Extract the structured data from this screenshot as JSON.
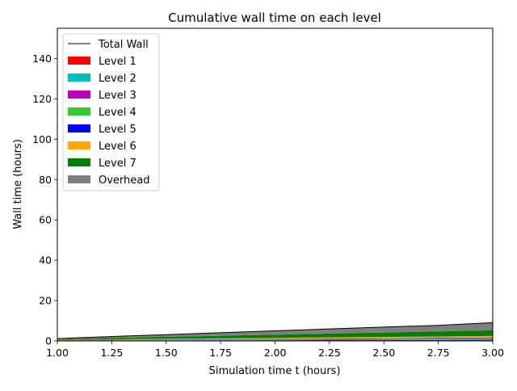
{
  "chart_data": {
    "type": "area",
    "title": "Cumulative wall time on each level",
    "xlabel": "Simulation time t (hours)",
    "ylabel": "Wall time (hours)",
    "xlim": [
      1.0,
      3.0
    ],
    "ylim": [
      0,
      155
    ],
    "xticks": [
      1.0,
      1.25,
      1.5,
      1.75,
      2.0,
      2.25,
      2.5,
      2.75,
      3.0
    ],
    "xtick_labels": [
      "1.00",
      "1.25",
      "1.50",
      "1.75",
      "2.00",
      "2.25",
      "2.50",
      "2.75",
      "3.00"
    ],
    "yticks": [
      0,
      20,
      40,
      60,
      80,
      100,
      120,
      140
    ],
    "ytick_labels": [
      "0",
      "20",
      "40",
      "60",
      "80",
      "100",
      "120",
      "140"
    ],
    "grid": false,
    "legend_position": "upper-left",
    "x": [
      1.0,
      1.25,
      1.5,
      1.75,
      2.0,
      2.25,
      2.5,
      2.75,
      3.0
    ],
    "series": [
      {
        "name": "Level 1",
        "color": "#ff0000",
        "values": [
          0.15,
          0.2,
          0.25,
          0.3,
          0.35,
          0.4,
          0.45,
          0.5,
          0.55
        ]
      },
      {
        "name": "Level 2",
        "color": "#00bfbf",
        "values": [
          0.1,
          0.12,
          0.14,
          0.16,
          0.18,
          0.2,
          0.22,
          0.24,
          0.26
        ]
      },
      {
        "name": "Level 3",
        "color": "#bf00bf",
        "values": [
          0.08,
          0.1,
          0.12,
          0.14,
          0.16,
          0.18,
          0.2,
          0.22,
          0.24
        ]
      },
      {
        "name": "Level 4",
        "color": "#32cd32",
        "values": [
          0.08,
          0.1,
          0.12,
          0.14,
          0.16,
          0.18,
          0.2,
          0.22,
          0.24
        ]
      },
      {
        "name": "Level 5",
        "color": "#0000ff",
        "values": [
          0.05,
          0.08,
          0.1,
          0.12,
          0.15,
          0.18,
          0.2,
          0.22,
          0.25
        ]
      },
      {
        "name": "Level 6",
        "color": "#ffa500",
        "values": [
          0.1,
          0.2,
          0.3,
          0.4,
          0.5,
          0.6,
          0.7,
          0.8,
          0.9
        ]
      },
      {
        "name": "Level 7",
        "color": "#008000",
        "values": [
          0.3,
          0.7,
          1.0,
          1.3,
          1.6,
          1.9,
          2.2,
          2.5,
          2.8
        ]
      },
      {
        "name": "Overhead",
        "color": "#808080",
        "values": [
          0.3,
          0.7,
          1.1,
          1.5,
          1.9,
          2.3,
          2.7,
          3.0,
          3.8
        ]
      }
    ],
    "total_wall": {
      "name": "Total Wall",
      "color": "#000000",
      "values": [
        1.16,
        2.2,
        3.13,
        4.06,
        5.0,
        5.94,
        6.87,
        7.7,
        9.04
      ]
    },
    "legend": [
      "Total Wall",
      "Level 1",
      "Level 2",
      "Level 3",
      "Level 4",
      "Level 5",
      "Level 6",
      "Level 7",
      "Overhead"
    ]
  }
}
